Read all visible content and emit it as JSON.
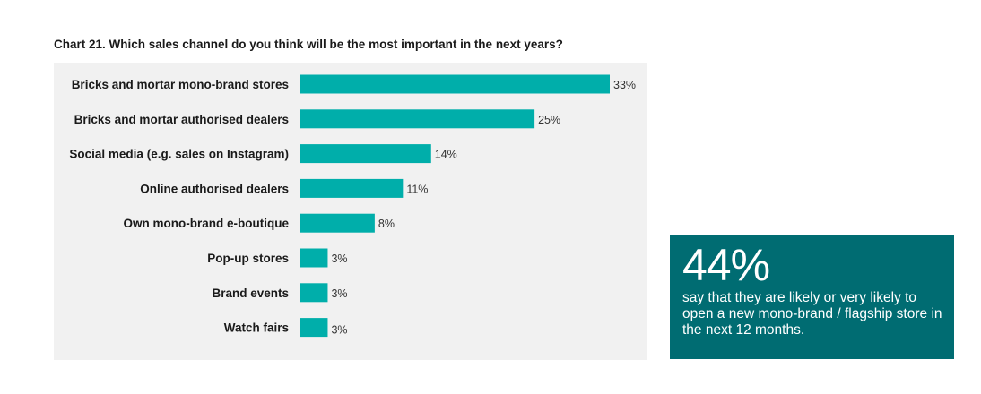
{
  "chart_title": "Chart 21. Which sales channel do you think will be the most important in the next years?",
  "colors": {
    "bar": "#00aeaa",
    "panel_background": "#f1f1f1",
    "callout_background": "#006c72"
  },
  "chart_data": {
    "type": "bar",
    "orientation": "horizontal",
    "title": "Chart 21. Which sales channel do you think will be the most important in the next years?",
    "categories": [
      "Bricks and mortar mono-brand stores",
      "Bricks and mortar authorised dealers",
      "Social media (e.g. sales on Instagram)",
      "Online authorised dealers",
      "Own mono-brand e-boutique",
      "Pop-up stores",
      "Brand events",
      "Watch fairs"
    ],
    "values": [
      33,
      25,
      14,
      11,
      8,
      3,
      3,
      3
    ],
    "value_labels": [
      "33%",
      "25%",
      "14%",
      "11%",
      "8%",
      "3%",
      "3%",
      "3%"
    ],
    "xlim": [
      0,
      33
    ],
    "grid": false,
    "legend": "none"
  },
  "callout": {
    "number": "44%",
    "text": "say that they are likely or very likely to open a new mono-brand / flagship store in the next 12 months."
  }
}
